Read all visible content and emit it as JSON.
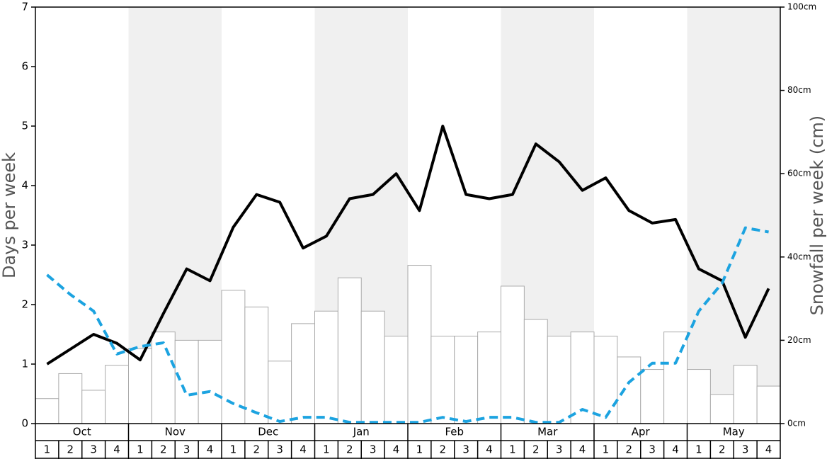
{
  "chart_data": {
    "type": "combo",
    "y_label": "Days per week",
    "y2_label": "Snowfall per week (cm)",
    "months": [
      "Oct",
      "Nov",
      "Dec",
      "Jan",
      "Feb",
      "Mar",
      "Apr",
      "May"
    ],
    "categories": [
      "1",
      "2",
      "3",
      "4",
      "1",
      "2",
      "3",
      "4",
      "1",
      "2",
      "3",
      "4",
      "1",
      "2",
      "3",
      "4",
      "1",
      "2",
      "3",
      "4",
      "1",
      "2",
      "3",
      "4",
      "1",
      "2",
      "3",
      "4",
      "1",
      "2",
      "3",
      "4"
    ],
    "ylim": [
      0,
      7
    ],
    "yticks": [
      0,
      1,
      2,
      3,
      4,
      5,
      6,
      7
    ],
    "y2lim": [
      0,
      100
    ],
    "y2ticks": [
      {
        "value": 0,
        "label": "0cm"
      },
      {
        "value": 20,
        "label": "20cm"
      },
      {
        "value": 40,
        "label": "40cm"
      },
      {
        "value": 60,
        "label": "60cm"
      },
      {
        "value": 80,
        "label": "80cm"
      },
      {
        "value": 100,
        "label": "100cm"
      }
    ],
    "series": [
      {
        "type": "bar",
        "axis": "y2",
        "color": "#ffffff",
        "values": [
          6,
          12,
          8,
          14,
          18,
          22,
          20,
          20,
          32,
          28,
          15,
          24,
          27,
          35,
          27,
          21,
          38,
          21,
          21,
          22,
          33,
          25,
          21,
          22,
          21,
          16,
          13,
          22,
          13,
          7,
          14,
          9
        ]
      },
      {
        "type": "line",
        "color": "#000000",
        "values": [
          1.0,
          1.25,
          1.5,
          1.35,
          1.07,
          1.85,
          2.6,
          2.4,
          3.3,
          3.85,
          3.72,
          2.95,
          3.15,
          3.78,
          3.85,
          4.2,
          3.58,
          5.0,
          3.85,
          3.78,
          3.85,
          4.7,
          4.4,
          3.92,
          4.13,
          3.58,
          3.37,
          3.43,
          2.6,
          2.4,
          1.45,
          2.27
        ]
      },
      {
        "type": "line",
        "axis": "y2",
        "dashed": true,
        "color": "#1ca3e0",
        "values": [
          35.7,
          31,
          27,
          16.7,
          18.5,
          19.4,
          6.8,
          7.7,
          4.8,
          2.6,
          0.5,
          1.5,
          1.5,
          0.3,
          0.3,
          0.3,
          0.3,
          1.5,
          0.5,
          1.5,
          1.5,
          0.3,
          0.3,
          3.4,
          1.5,
          9.9,
          14.5,
          14.5,
          27,
          33.7,
          47,
          46
        ]
      }
    ]
  }
}
